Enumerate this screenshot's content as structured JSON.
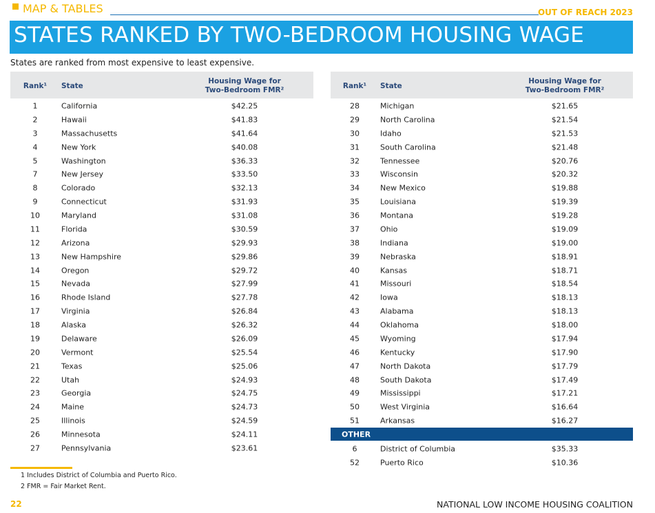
{
  "header": {
    "section": "MAP & TABLES",
    "publication": "OUT OF REACH 2023",
    "title": "STATES RANKED BY TWO-BEDROOM HOUSING WAGE",
    "subtitle": "States are ranked from most expensive to least expensive."
  },
  "tables": [
    {
      "columns": [
        "Rank¹",
        "State",
        "Housing Wage for Two-Bedroom FMR²"
      ],
      "rows": [
        [
          1,
          "California",
          "$42.25"
        ],
        [
          2,
          "Hawaii",
          "$41.83"
        ],
        [
          3,
          "Massachusetts",
          "$41.64"
        ],
        [
          4,
          "New York",
          "$40.08"
        ],
        [
          5,
          "Washington",
          "$36.33"
        ],
        [
          7,
          "New Jersey",
          "$33.50"
        ],
        [
          8,
          "Colorado",
          "$32.13"
        ],
        [
          9,
          "Connecticut",
          "$31.93"
        ],
        [
          10,
          "Maryland",
          "$31.08"
        ],
        [
          11,
          "Florida",
          "$30.59"
        ],
        [
          12,
          "Arizona",
          "$29.93"
        ],
        [
          13,
          "New Hampshire",
          "$29.86"
        ],
        [
          14,
          "Oregon",
          "$29.72"
        ],
        [
          15,
          "Nevada",
          "$27.99"
        ],
        [
          16,
          "Rhode Island",
          "$27.78"
        ],
        [
          17,
          "Virginia",
          "$26.84"
        ],
        [
          18,
          "Alaska",
          "$26.32"
        ],
        [
          19,
          "Delaware",
          "$26.09"
        ],
        [
          20,
          "Vermont",
          "$25.54"
        ],
        [
          21,
          "Texas",
          "$25.06"
        ],
        [
          22,
          "Utah",
          "$24.93"
        ],
        [
          23,
          "Georgia",
          "$24.75"
        ],
        [
          24,
          "Maine",
          "$24.73"
        ],
        [
          25,
          "Illinois",
          "$24.59"
        ],
        [
          26,
          "Minnesota",
          "$24.11"
        ],
        [
          27,
          "Pennsylvania",
          "$23.61"
        ]
      ]
    },
    {
      "columns": [
        "Rank¹",
        "State",
        "Housing Wage for Two-Bedroom FMR²"
      ],
      "rows": [
        [
          28,
          "Michigan",
          "$21.65"
        ],
        [
          29,
          "North Carolina",
          "$21.54"
        ],
        [
          30,
          "Idaho",
          "$21.53"
        ],
        [
          31,
          "South Carolina",
          "$21.48"
        ],
        [
          32,
          "Tennessee",
          "$20.76"
        ],
        [
          33,
          "Wisconsin",
          "$20.32"
        ],
        [
          34,
          "New Mexico",
          "$19.88"
        ],
        [
          35,
          "Louisiana",
          "$19.39"
        ],
        [
          36,
          "Montana",
          "$19.28"
        ],
        [
          37,
          "Ohio",
          "$19.09"
        ],
        [
          38,
          "Indiana",
          "$19.00"
        ],
        [
          39,
          "Nebraska",
          "$18.91"
        ],
        [
          40,
          "Kansas",
          "$18.71"
        ],
        [
          41,
          "Missouri",
          "$18.54"
        ],
        [
          42,
          "Iowa",
          "$18.13"
        ],
        [
          43,
          "Alabama",
          "$18.13"
        ],
        [
          44,
          "Oklahoma",
          "$18.00"
        ],
        [
          45,
          "Wyoming",
          "$17.94"
        ],
        [
          46,
          "Kentucky",
          "$17.90"
        ],
        [
          47,
          "North Dakota",
          "$17.79"
        ],
        [
          48,
          "South Dakota",
          "$17.49"
        ],
        [
          49,
          "Mississippi",
          "$17.21"
        ],
        [
          50,
          "West Virginia",
          "$16.64"
        ],
        [
          51,
          "Arkansas",
          "$16.27"
        ]
      ],
      "other": {
        "label": "OTHER",
        "rows": [
          [
            6,
            "District of Columbia",
            "$35.33"
          ],
          [
            52,
            "Puerto Rico",
            "$10.36"
          ]
        ]
      }
    }
  ],
  "footnotes": [
    "1 Includes District of Columbia and Puerto Rico.",
    "2 FMR = Fair Market Rent."
  ],
  "footer": {
    "page": "22",
    "organization": "NATIONAL LOW INCOME HOUSING COALITION"
  }
}
